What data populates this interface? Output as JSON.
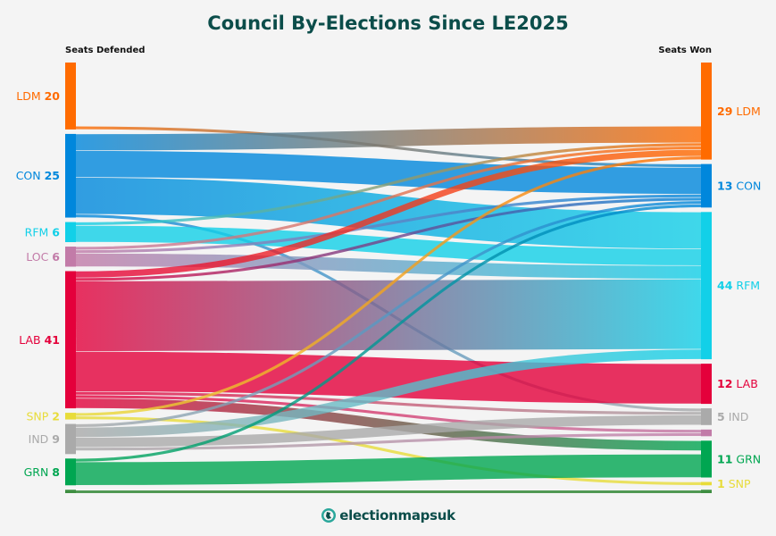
{
  "chart_data": {
    "type": "sankey",
    "title": "Council By-Elections Since LE2025",
    "left_header": "Seats Defended",
    "right_header": "Seats Won",
    "colors": {
      "LDM": "#FF6B00",
      "CON": "#0087DC",
      "RFM": "#12D0E8",
      "LOC": "#C27BA8",
      "LAB": "#E4003B",
      "SNP": "#E8DC3A",
      "IND": "#AAAAAA",
      "GRN": "#00A651",
      "OTH": "#3E8E41"
    },
    "left_nodes": [
      {
        "id": "LDM",
        "label": "LDM",
        "value": 20,
        "value_text": "20"
      },
      {
        "id": "CON",
        "label": "CON",
        "value": 25,
        "value_text": "25"
      },
      {
        "id": "RFM",
        "label": "RFM",
        "value": 6,
        "value_text": "6"
      },
      {
        "id": "LOC",
        "label": "LOC",
        "value": 6,
        "value_text": "6"
      },
      {
        "id": "LAB",
        "label": "LAB",
        "value": 41,
        "value_text": "41"
      },
      {
        "id": "SNP",
        "label": "SNP",
        "value": 2,
        "value_text": "2"
      },
      {
        "id": "IND",
        "label": "IND",
        "value": 9,
        "value_text": "9"
      },
      {
        "id": "GRN",
        "label": "GRN",
        "value": 8,
        "value_text": "8"
      },
      {
        "id": "OTH",
        "label": "",
        "value": 1,
        "value_text": ""
      }
    ],
    "right_nodes": [
      {
        "id": "LDM",
        "label": "LDM",
        "value": 29,
        "value_text": "29"
      },
      {
        "id": "CON",
        "label": "CON",
        "value": 13,
        "value_text": "13"
      },
      {
        "id": "RFM",
        "label": "RFM",
        "value": 44,
        "value_text": "44"
      },
      {
        "id": "LAB",
        "label": "LAB",
        "value": 12,
        "value_text": "12"
      },
      {
        "id": "IND",
        "label": "IND",
        "value": 5,
        "value_text": "5"
      },
      {
        "id": "LOC",
        "label": "",
        "value": 2,
        "value_text": ""
      },
      {
        "id": "GRN",
        "label": "GRN",
        "value": 11,
        "value_text": "11"
      },
      {
        "id": "SNP",
        "label": "SNP",
        "value": 1,
        "value_text": "1"
      },
      {
        "id": "OTH",
        "label": "",
        "value": 1,
        "value_text": ""
      }
    ],
    "links": [
      {
        "from": "LDM",
        "to": "LDM",
        "value": 19
      },
      {
        "from": "LDM",
        "to": "CON",
        "value": 1
      },
      {
        "from": "CON",
        "to": "LDM",
        "value": 5
      },
      {
        "from": "CON",
        "to": "CON",
        "value": 8
      },
      {
        "from": "CON",
        "to": "RFM",
        "value": 11
      },
      {
        "from": "CON",
        "to": "IND",
        "value": 1
      },
      {
        "from": "RFM",
        "to": "LDM",
        "value": 1
      },
      {
        "from": "RFM",
        "to": "RFM",
        "value": 5
      },
      {
        "from": "LOC",
        "to": "LDM",
        "value": 1
      },
      {
        "from": "LOC",
        "to": "CON",
        "value": 1
      },
      {
        "from": "LOC",
        "to": "RFM",
        "value": 4
      },
      {
        "from": "LAB",
        "to": "LDM",
        "value": 2
      },
      {
        "from": "LAB",
        "to": "CON",
        "value": 1
      },
      {
        "from": "LAB",
        "to": "RFM",
        "value": 21
      },
      {
        "from": "LAB",
        "to": "LAB",
        "value": 12
      },
      {
        "from": "LAB",
        "to": "IND",
        "value": 1
      },
      {
        "from": "LAB",
        "to": "LOC",
        "value": 1
      },
      {
        "from": "LAB",
        "to": "GRN",
        "value": 3
      },
      {
        "from": "SNP",
        "to": "LDM",
        "value": 1
      },
      {
        "from": "SNP",
        "to": "SNP",
        "value": 1
      },
      {
        "from": "IND",
        "to": "CON",
        "value": 1
      },
      {
        "from": "IND",
        "to": "RFM",
        "value": 3
      },
      {
        "from": "IND",
        "to": "IND",
        "value": 3
      },
      {
        "from": "IND",
        "to": "LOC",
        "value": 1
      },
      {
        "from": "IND",
        "to": "GRN",
        "value": 1
      },
      {
        "from": "GRN",
        "to": "CON",
        "value": 1
      },
      {
        "from": "GRN",
        "to": "GRN",
        "value": 7
      },
      {
        "from": "OTH",
        "to": "OTH",
        "value": 1
      }
    ]
  },
  "footer": {
    "logo_text": "electionmapsuk"
  }
}
